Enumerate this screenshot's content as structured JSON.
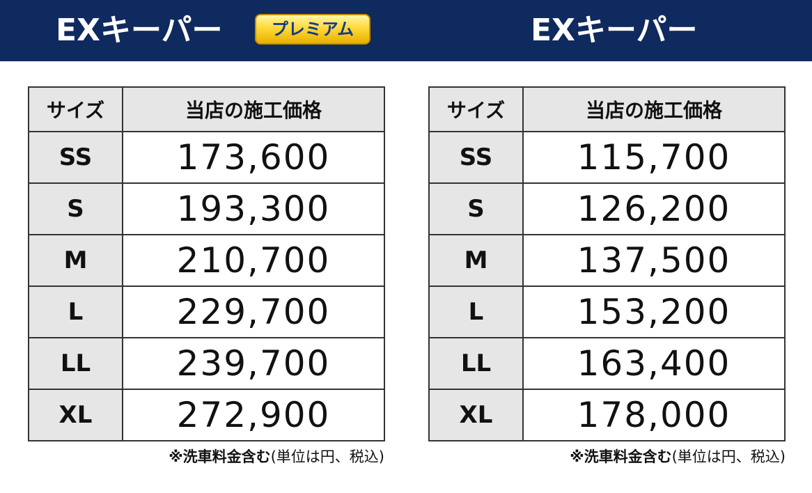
{
  "colors": {
    "header_background": "#0f2a5e",
    "header_text": "#ffffff",
    "badge_gold": "#ffd93a",
    "badge_text": "#123a8c",
    "header_cell_background": "#e6e6e6",
    "border": "#333333"
  },
  "header": {
    "left_title": "EXキーパー",
    "premium_badge": "プレミアム",
    "right_title": "EXキーパー"
  },
  "tables": [
    {
      "headers": {
        "size": "サイズ",
        "price": "当店の施工価格"
      },
      "rows": [
        {
          "size": "SS",
          "price": "173,600"
        },
        {
          "size": "S",
          "price": "193,300"
        },
        {
          "size": "M",
          "price": "210,700"
        },
        {
          "size": "L",
          "price": "229,700"
        },
        {
          "size": "LL",
          "price": "239,700"
        },
        {
          "size": "XL",
          "price": "272,900"
        }
      ],
      "note_bold": "※洗車料金含む",
      "note_rest": "(単位は円、税込)"
    },
    {
      "headers": {
        "size": "サイズ",
        "price": "当店の施工価格"
      },
      "rows": [
        {
          "size": "SS",
          "price": "115,700"
        },
        {
          "size": "S",
          "price": "126,200"
        },
        {
          "size": "M",
          "price": "137,500"
        },
        {
          "size": "L",
          "price": "153,200"
        },
        {
          "size": "LL",
          "price": "163,400"
        },
        {
          "size": "XL",
          "price": "178,000"
        }
      ],
      "note_bold": "※洗車料金含む",
      "note_rest": "(単位は円、税込)"
    }
  ]
}
